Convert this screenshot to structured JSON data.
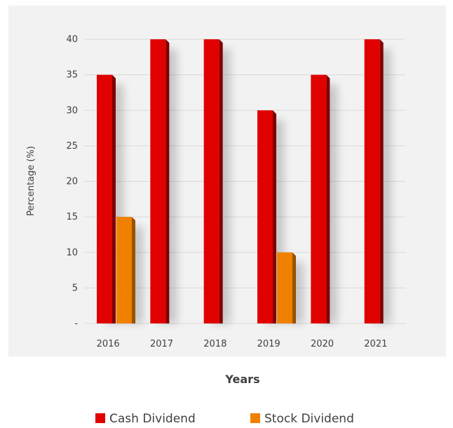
{
  "chart_data": {
    "type": "bar",
    "categories": [
      "2016",
      "2017",
      "2018",
      "2019",
      "2020",
      "2021"
    ],
    "series": [
      {
        "name": "Cash Dividend",
        "values": [
          35,
          40,
          40,
          30,
          35,
          40
        ],
        "color": "#e00000"
      },
      {
        "name": "Stock Dividend",
        "values": [
          15,
          0,
          0,
          10,
          0,
          0
        ],
        "color": "#f08000"
      }
    ],
    "ylim": [
      0,
      40
    ],
    "yticks": [
      0,
      5,
      10,
      15,
      20,
      25,
      30,
      35,
      40
    ],
    "ytick_labels": [
      "-",
      "5",
      "10",
      "15",
      "20",
      "25",
      "30",
      "35",
      "40"
    ],
    "title": "",
    "xlabel": "Years",
    "ylabel": "Percentage (%)",
    "grid": true,
    "legend": "bottom",
    "plot_background": "#f2f2f2"
  }
}
